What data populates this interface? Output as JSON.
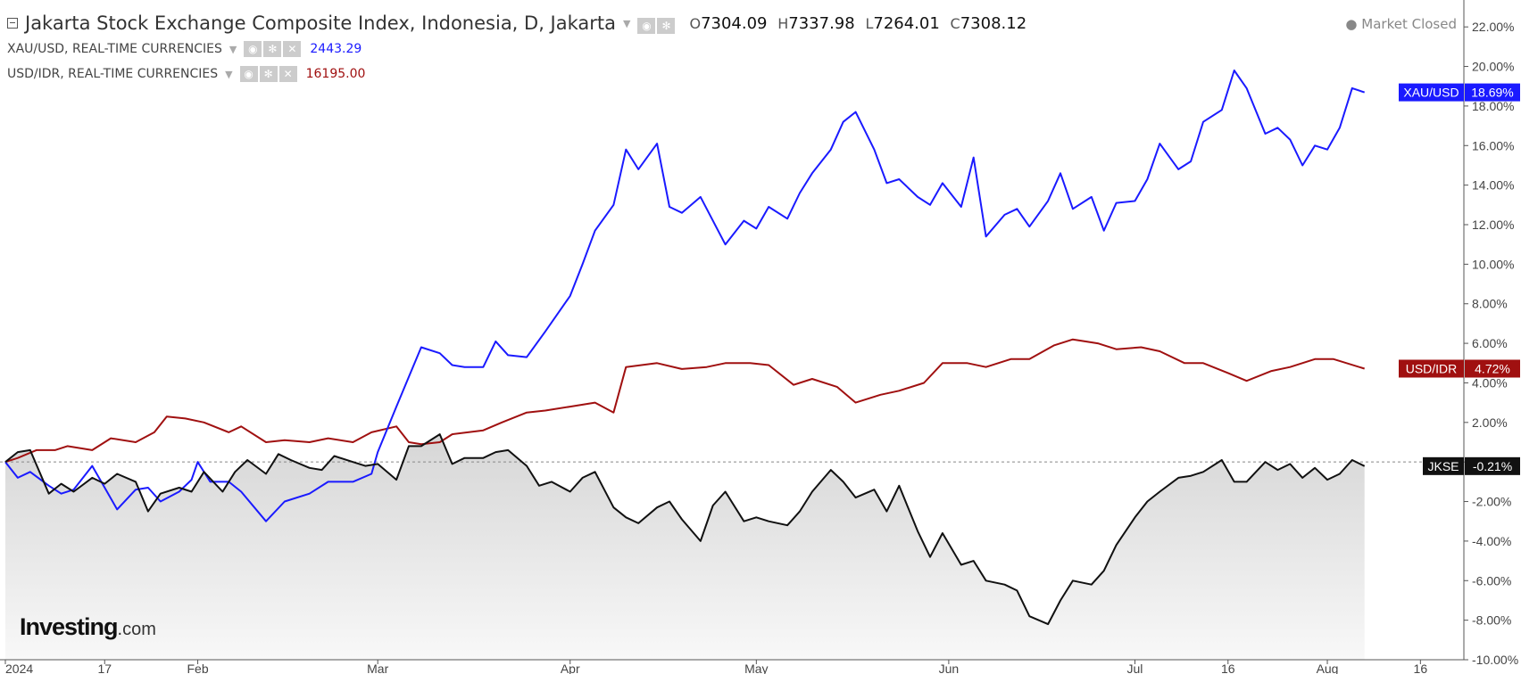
{
  "header": {
    "title": "Jakarta Stock Exchange Composite Index, Indonesia, D, Jakarta",
    "ohlc": [
      {
        "key": "O",
        "value": "7304.09"
      },
      {
        "key": "H",
        "value": "7337.98"
      },
      {
        "key": "L",
        "value": "7264.01"
      },
      {
        "key": "C",
        "value": "7308.12"
      }
    ],
    "market_status": "Market Closed"
  },
  "overlays": [
    {
      "label": "XAU/USD, REAL-TIME CURRENCIES",
      "value": "2443.29",
      "color": "#1a1aff"
    },
    {
      "label": "USD/IDR, REAL-TIME CURRENCIES",
      "value": "16195.00",
      "color": "#a01010"
    }
  ],
  "icons": [
    "eye-icon",
    "gear-icon",
    "close-icon"
  ],
  "logo": {
    "main": "Investing",
    "suffix": ".com"
  },
  "colors": {
    "gold": "#1a1aff",
    "idr": "#a01010",
    "jkse": "#111111",
    "area_top": "#dcdcdc",
    "area_bottom": "#f7f7f7"
  },
  "chart_data": {
    "type": "line",
    "y_unit": "%",
    "ylim": [
      -10,
      23
    ],
    "y_ticks": [
      "22.00%",
      "20.00%",
      "18.00%",
      "16.00%",
      "14.00%",
      "12.00%",
      "10.00%",
      "8.00%",
      "6.00%",
      "4.00%",
      "2.00%",
      "0.00%",
      "-2.00%",
      "-4.00%",
      "-6.00%",
      "-8.00%",
      "-10.00%"
    ],
    "y_tick_values": [
      22,
      20,
      18,
      16,
      14,
      12,
      10,
      8,
      6,
      4,
      2,
      0,
      -2,
      -4,
      -6,
      -8,
      -10
    ],
    "x_range": [
      "2024-01-01",
      "2024-08-23"
    ],
    "x_ticks": [
      {
        "label": "2024",
        "date": "2024-01-01"
      },
      {
        "label": "17",
        "date": "2024-01-17"
      },
      {
        "label": "Feb",
        "date": "2024-02-01"
      },
      {
        "label": "Mar",
        "date": "2024-03-01"
      },
      {
        "label": "Apr",
        "date": "2024-04-01"
      },
      {
        "label": "May",
        "date": "2024-05-01"
      },
      {
        "label": "Jun",
        "date": "2024-06-01"
      },
      {
        "label": "Jul",
        "date": "2024-07-01"
      },
      {
        "label": "16",
        "date": "2024-07-16"
      },
      {
        "label": "Aug",
        "date": "2024-08-01"
      },
      {
        "label": "16",
        "date": "2024-08-16"
      }
    ],
    "series": [
      {
        "name": "XAU/USD",
        "last_label": "18.69%",
        "points": [
          [
            "2024-01-01",
            0
          ],
          [
            "2024-01-03",
            -0.8
          ],
          [
            "2024-01-05",
            -0.5
          ],
          [
            "2024-01-08",
            -1.2
          ],
          [
            "2024-01-10",
            -1.6
          ],
          [
            "2024-01-12",
            -1.4
          ],
          [
            "2024-01-15",
            -0.2
          ],
          [
            "2024-01-17",
            -1.3
          ],
          [
            "2024-01-19",
            -2.4
          ],
          [
            "2024-01-22",
            -1.4
          ],
          [
            "2024-01-24",
            -1.3
          ],
          [
            "2024-01-26",
            -2.0
          ],
          [
            "2024-01-29",
            -1.5
          ],
          [
            "2024-01-31",
            -0.9
          ],
          [
            "2024-02-01",
            0
          ],
          [
            "2024-02-03",
            -1.0
          ],
          [
            "2024-02-06",
            -1.0
          ],
          [
            "2024-02-08",
            -1.5
          ],
          [
            "2024-02-12",
            -3.0
          ],
          [
            "2024-02-15",
            -2.0
          ],
          [
            "2024-02-19",
            -1.6
          ],
          [
            "2024-02-22",
            -1.0
          ],
          [
            "2024-02-26",
            -1.0
          ],
          [
            "2024-02-29",
            -0.6
          ],
          [
            "2024-03-01",
            0.5
          ],
          [
            "2024-03-04",
            2.8
          ],
          [
            "2024-03-06",
            4.3
          ],
          [
            "2024-03-08",
            5.8
          ],
          [
            "2024-03-11",
            5.5
          ],
          [
            "2024-03-13",
            4.9
          ],
          [
            "2024-03-15",
            4.8
          ],
          [
            "2024-03-18",
            4.8
          ],
          [
            "2024-03-20",
            6.1
          ],
          [
            "2024-03-22",
            5.4
          ],
          [
            "2024-03-25",
            5.3
          ],
          [
            "2024-03-28",
            6.6
          ],
          [
            "2024-04-01",
            8.4
          ],
          [
            "2024-04-03",
            10.0
          ],
          [
            "2024-04-05",
            11.7
          ],
          [
            "2024-04-08",
            13.0
          ],
          [
            "2024-04-10",
            15.8
          ],
          [
            "2024-04-12",
            14.8
          ],
          [
            "2024-04-15",
            16.1
          ],
          [
            "2024-04-17",
            12.9
          ],
          [
            "2024-04-19",
            12.6
          ],
          [
            "2024-04-22",
            13.4
          ],
          [
            "2024-04-24",
            12.2
          ],
          [
            "2024-04-26",
            11.0
          ],
          [
            "2024-04-29",
            12.2
          ],
          [
            "2024-05-01",
            11.8
          ],
          [
            "2024-05-03",
            12.9
          ],
          [
            "2024-05-06",
            12.3
          ],
          [
            "2024-05-08",
            13.6
          ],
          [
            "2024-05-10",
            14.6
          ],
          [
            "2024-05-13",
            15.8
          ],
          [
            "2024-05-15",
            17.2
          ],
          [
            "2024-05-17",
            17.7
          ],
          [
            "2024-05-20",
            15.8
          ],
          [
            "2024-05-22",
            14.1
          ],
          [
            "2024-05-24",
            14.3
          ],
          [
            "2024-05-27",
            13.4
          ],
          [
            "2024-05-29",
            13.0
          ],
          [
            "2024-05-31",
            14.1
          ],
          [
            "2024-06-03",
            12.9
          ],
          [
            "2024-06-05",
            15.4
          ],
          [
            "2024-06-07",
            11.4
          ],
          [
            "2024-06-10",
            12.5
          ],
          [
            "2024-06-12",
            12.8
          ],
          [
            "2024-06-14",
            11.9
          ],
          [
            "2024-06-17",
            13.2
          ],
          [
            "2024-06-19",
            14.6
          ],
          [
            "2024-06-21",
            12.8
          ],
          [
            "2024-06-24",
            13.4
          ],
          [
            "2024-06-26",
            11.7
          ],
          [
            "2024-06-28",
            13.1
          ],
          [
            "2024-07-01",
            13.2
          ],
          [
            "2024-07-03",
            14.3
          ],
          [
            "2024-07-05",
            16.1
          ],
          [
            "2024-07-08",
            14.8
          ],
          [
            "2024-07-10",
            15.2
          ],
          [
            "2024-07-12",
            17.2
          ],
          [
            "2024-07-15",
            17.8
          ],
          [
            "2024-07-17",
            19.8
          ],
          [
            "2024-07-19",
            18.9
          ],
          [
            "2024-07-22",
            16.6
          ],
          [
            "2024-07-24",
            16.9
          ],
          [
            "2024-07-26",
            16.3
          ],
          [
            "2024-07-28",
            15.0
          ],
          [
            "2024-07-30",
            16.0
          ],
          [
            "2024-08-01",
            15.8
          ],
          [
            "2024-08-03",
            16.9
          ],
          [
            "2024-08-05",
            18.9
          ],
          [
            "2024-08-07",
            18.69
          ]
        ]
      },
      {
        "name": "USD/IDR",
        "last_label": "4.72%",
        "points": [
          [
            "2024-01-01",
            0
          ],
          [
            "2024-01-03",
            0.2
          ],
          [
            "2024-01-06",
            0.6
          ],
          [
            "2024-01-09",
            0.6
          ],
          [
            "2024-01-11",
            0.8
          ],
          [
            "2024-01-15",
            0.6
          ],
          [
            "2024-01-18",
            1.2
          ],
          [
            "2024-01-22",
            1.0
          ],
          [
            "2024-01-25",
            1.5
          ],
          [
            "2024-01-27",
            2.3
          ],
          [
            "2024-01-30",
            2.2
          ],
          [
            "2024-02-02",
            2.0
          ],
          [
            "2024-02-06",
            1.5
          ],
          [
            "2024-02-08",
            1.8
          ],
          [
            "2024-02-12",
            1.0
          ],
          [
            "2024-02-15",
            1.1
          ],
          [
            "2024-02-19",
            1.0
          ],
          [
            "2024-02-22",
            1.2
          ],
          [
            "2024-02-26",
            1.0
          ],
          [
            "2024-02-29",
            1.5
          ],
          [
            "2024-03-04",
            1.8
          ],
          [
            "2024-03-06",
            1.0
          ],
          [
            "2024-03-08",
            0.9
          ],
          [
            "2024-03-11",
            1.0
          ],
          [
            "2024-03-13",
            1.4
          ],
          [
            "2024-03-18",
            1.6
          ],
          [
            "2024-03-21",
            2.0
          ],
          [
            "2024-03-25",
            2.5
          ],
          [
            "2024-03-28",
            2.6
          ],
          [
            "2024-04-01",
            2.8
          ],
          [
            "2024-04-05",
            3.0
          ],
          [
            "2024-04-08",
            2.5
          ],
          [
            "2024-04-10",
            4.8
          ],
          [
            "2024-04-15",
            5.0
          ],
          [
            "2024-04-19",
            4.7
          ],
          [
            "2024-04-23",
            4.8
          ],
          [
            "2024-04-26",
            5.0
          ],
          [
            "2024-04-30",
            5.0
          ],
          [
            "2024-05-03",
            4.9
          ],
          [
            "2024-05-07",
            3.9
          ],
          [
            "2024-05-10",
            4.2
          ],
          [
            "2024-05-14",
            3.8
          ],
          [
            "2024-05-17",
            3.0
          ],
          [
            "2024-05-21",
            3.4
          ],
          [
            "2024-05-24",
            3.6
          ],
          [
            "2024-05-28",
            4.0
          ],
          [
            "2024-05-31",
            5.0
          ],
          [
            "2024-06-04",
            5.0
          ],
          [
            "2024-06-07",
            4.8
          ],
          [
            "2024-06-11",
            5.2
          ],
          [
            "2024-06-14",
            5.2
          ],
          [
            "2024-06-18",
            5.9
          ],
          [
            "2024-06-21",
            6.2
          ],
          [
            "2024-06-25",
            6.0
          ],
          [
            "2024-06-28",
            5.7
          ],
          [
            "2024-07-02",
            5.8
          ],
          [
            "2024-07-05",
            5.6
          ],
          [
            "2024-07-09",
            5.0
          ],
          [
            "2024-07-12",
            5.0
          ],
          [
            "2024-07-16",
            4.5
          ],
          [
            "2024-07-19",
            4.1
          ],
          [
            "2024-07-23",
            4.6
          ],
          [
            "2024-07-26",
            4.8
          ],
          [
            "2024-07-30",
            5.2
          ],
          [
            "2024-08-02",
            5.2
          ],
          [
            "2024-08-07",
            4.72
          ]
        ]
      },
      {
        "name": "JKSE",
        "last_label": "-0.21%",
        "points": [
          [
            "2024-01-01",
            0
          ],
          [
            "2024-01-03",
            0.5
          ],
          [
            "2024-01-05",
            0.6
          ],
          [
            "2024-01-08",
            -1.6
          ],
          [
            "2024-01-10",
            -1.1
          ],
          [
            "2024-01-12",
            -1.5
          ],
          [
            "2024-01-15",
            -0.8
          ],
          [
            "2024-01-17",
            -1.1
          ],
          [
            "2024-01-19",
            -0.6
          ],
          [
            "2024-01-22",
            -1.0
          ],
          [
            "2024-01-24",
            -2.5
          ],
          [
            "2024-01-26",
            -1.6
          ],
          [
            "2024-01-29",
            -1.3
          ],
          [
            "2024-01-31",
            -1.5
          ],
          [
            "2024-02-02",
            -0.5
          ],
          [
            "2024-02-05",
            -1.5
          ],
          [
            "2024-02-07",
            -0.5
          ],
          [
            "2024-02-09",
            0.1
          ],
          [
            "2024-02-12",
            -0.6
          ],
          [
            "2024-02-14",
            0.4
          ],
          [
            "2024-02-16",
            0.1
          ],
          [
            "2024-02-19",
            -0.3
          ],
          [
            "2024-02-21",
            -0.4
          ],
          [
            "2024-02-23",
            0.3
          ],
          [
            "2024-02-26",
            0.0
          ],
          [
            "2024-02-28",
            -0.2
          ],
          [
            "2024-03-01",
            -0.1
          ],
          [
            "2024-03-04",
            -0.9
          ],
          [
            "2024-03-06",
            0.8
          ],
          [
            "2024-03-08",
            0.8
          ],
          [
            "2024-03-11",
            1.4
          ],
          [
            "2024-03-13",
            -0.1
          ],
          [
            "2024-03-15",
            0.2
          ],
          [
            "2024-03-18",
            0.2
          ],
          [
            "2024-03-20",
            0.5
          ],
          [
            "2024-03-22",
            0.6
          ],
          [
            "2024-03-25",
            -0.2
          ],
          [
            "2024-03-27",
            -1.2
          ],
          [
            "2024-03-29",
            -1.0
          ],
          [
            "2024-04-01",
            -1.5
          ],
          [
            "2024-04-03",
            -0.8
          ],
          [
            "2024-04-05",
            -0.5
          ],
          [
            "2024-04-08",
            -2.3
          ],
          [
            "2024-04-10",
            -2.8
          ],
          [
            "2024-04-12",
            -3.1
          ],
          [
            "2024-04-15",
            -2.3
          ],
          [
            "2024-04-17",
            -2.0
          ],
          [
            "2024-04-19",
            -2.9
          ],
          [
            "2024-04-22",
            -4.0
          ],
          [
            "2024-04-24",
            -2.2
          ],
          [
            "2024-04-26",
            -1.5
          ],
          [
            "2024-04-29",
            -3.0
          ],
          [
            "2024-05-01",
            -2.8
          ],
          [
            "2024-05-03",
            -3.0
          ],
          [
            "2024-05-06",
            -3.2
          ],
          [
            "2024-05-08",
            -2.5
          ],
          [
            "2024-05-10",
            -1.5
          ],
          [
            "2024-05-13",
            -0.4
          ],
          [
            "2024-05-15",
            -1.0
          ],
          [
            "2024-05-17",
            -1.8
          ],
          [
            "2024-05-20",
            -1.4
          ],
          [
            "2024-05-22",
            -2.5
          ],
          [
            "2024-05-24",
            -1.2
          ],
          [
            "2024-05-27",
            -3.5
          ],
          [
            "2024-05-29",
            -4.8
          ],
          [
            "2024-05-31",
            -3.6
          ],
          [
            "2024-06-03",
            -5.2
          ],
          [
            "2024-06-05",
            -5.0
          ],
          [
            "2024-06-07",
            -6.0
          ],
          [
            "2024-06-10",
            -6.2
          ],
          [
            "2024-06-12",
            -6.5
          ],
          [
            "2024-06-14",
            -7.8
          ],
          [
            "2024-06-17",
            -8.2
          ],
          [
            "2024-06-19",
            -7.0
          ],
          [
            "2024-06-21",
            -6.0
          ],
          [
            "2024-06-24",
            -6.2
          ],
          [
            "2024-06-26",
            -5.5
          ],
          [
            "2024-06-28",
            -4.2
          ],
          [
            "2024-07-01",
            -2.8
          ],
          [
            "2024-07-03",
            -2.0
          ],
          [
            "2024-07-05",
            -1.5
          ],
          [
            "2024-07-08",
            -0.8
          ],
          [
            "2024-07-10",
            -0.7
          ],
          [
            "2024-07-12",
            -0.5
          ],
          [
            "2024-07-15",
            0.1
          ],
          [
            "2024-07-17",
            -1.0
          ],
          [
            "2024-07-19",
            -1.0
          ],
          [
            "2024-07-22",
            0.0
          ],
          [
            "2024-07-24",
            -0.4
          ],
          [
            "2024-07-26",
            -0.1
          ],
          [
            "2024-07-28",
            -0.8
          ],
          [
            "2024-07-30",
            -0.3
          ],
          [
            "2024-08-01",
            -0.9
          ],
          [
            "2024-08-03",
            -0.6
          ],
          [
            "2024-08-05",
            0.1
          ],
          [
            "2024-08-07",
            -0.21
          ]
        ]
      }
    ]
  }
}
